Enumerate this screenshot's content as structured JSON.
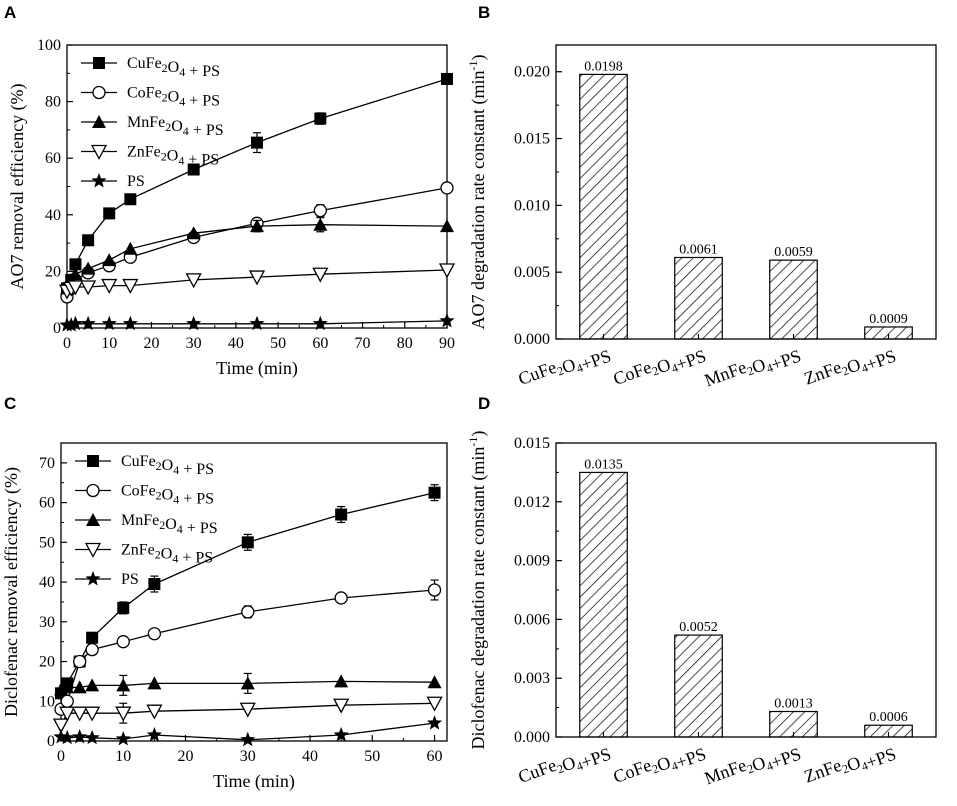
{
  "panels": {
    "A": {
      "letter": "A"
    },
    "B": {
      "letter": "B"
    },
    "C": {
      "letter": "C"
    },
    "D": {
      "letter": "D"
    }
  },
  "chart_data": [
    {
      "id": "A",
      "type": "line",
      "xlabel": "Time (min)",
      "ylabel": "AO7 removal efficiency (%)",
      "xlim": [
        0,
        90
      ],
      "ylim": [
        0,
        100
      ],
      "xticks": [
        0,
        10,
        20,
        30,
        40,
        50,
        60,
        70,
        80,
        90
      ],
      "yticks": [
        0,
        20,
        40,
        60,
        80,
        100
      ],
      "legend_position": "top-left",
      "series": [
        {
          "name": "CuFe2O4 + PS",
          "marker": "filled-square",
          "x": [
            0,
            1,
            2,
            5,
            10,
            15,
            30,
            45,
            60,
            90
          ],
          "y": [
            14,
            17,
            22.5,
            31,
            40.5,
            45.5,
            56,
            65.5,
            74,
            88
          ],
          "err": [
            0,
            0,
            0,
            0,
            0,
            0,
            0,
            3.5,
            2,
            0
          ]
        },
        {
          "name": "CoFe2O4 + PS",
          "marker": "open-circle",
          "x": [
            0,
            1,
            2,
            5,
            10,
            15,
            30,
            45,
            60,
            90
          ],
          "y": [
            11,
            14,
            17,
            19.5,
            22,
            25,
            32,
            37,
            41.5,
            49.5
          ],
          "err": [
            0,
            0,
            0,
            0,
            0,
            0,
            0,
            0,
            2,
            0
          ]
        },
        {
          "name": "MnFe2O4 + PS",
          "marker": "filled-triangle",
          "x": [
            0,
            1,
            2,
            5,
            10,
            15,
            30,
            45,
            60,
            90
          ],
          "y": [
            14,
            17,
            19,
            21,
            24,
            28,
            33.5,
            36,
            36.5,
            36
          ],
          "err": [
            0,
            0,
            0,
            0,
            0,
            0,
            0,
            2,
            2.5,
            0
          ]
        },
        {
          "name": "ZnFe2O4 + PS",
          "marker": "open-triangle-down",
          "x": [
            0,
            1,
            2,
            5,
            10,
            15,
            30,
            45,
            60,
            90
          ],
          "y": [
            13,
            14,
            14.5,
            14.5,
            15,
            15,
            17,
            18,
            19,
            20.5
          ],
          "err": [
            0,
            0,
            0,
            0,
            0,
            0,
            0,
            0,
            0,
            0
          ]
        },
        {
          "name": "PS",
          "marker": "filled-star",
          "x": [
            0,
            1,
            2,
            5,
            10,
            15,
            30,
            45,
            60,
            90
          ],
          "y": [
            1,
            1,
            1.5,
            1.5,
            1.5,
            1.5,
            1.5,
            1.5,
            1.5,
            2.5
          ],
          "err": [
            0,
            0,
            0,
            0,
            0,
            0,
            0,
            0,
            0,
            0
          ]
        }
      ]
    },
    {
      "id": "B",
      "type": "bar",
      "xlabel": "",
      "ylabel": "AO7 degradation rate constant (min-1)",
      "ylabel_main": "AO7 degradation rate constant (min",
      "ylabel_sup": "-1",
      "ylabel_close": ")",
      "ylim": [
        0,
        0.022
      ],
      "yticks": [
        "0.000",
        "0.005",
        "0.010",
        "0.015",
        "0.020"
      ],
      "categories": [
        "CuFe2O4+PS",
        "CoFe2O4+PS",
        "MnFe2O4+PS",
        "ZnFe2O4+PS"
      ],
      "values": [
        0.0198,
        0.0061,
        0.0059,
        0.0009
      ],
      "value_labels": [
        "0.0198",
        "0.0061",
        "0.0059",
        "0.0009"
      ],
      "bar_style": "hatched"
    },
    {
      "id": "C",
      "type": "line",
      "xlabel": "Time (min)",
      "ylabel": "Diclofenac removal efficiency (%)",
      "xlim": [
        0,
        62
      ],
      "ylim": [
        0,
        75
      ],
      "xticks": [
        0,
        10,
        20,
        30,
        40,
        50,
        60
      ],
      "yticks": [
        0,
        10,
        20,
        30,
        40,
        50,
        60,
        70
      ],
      "legend_position": "top-left",
      "series": [
        {
          "name": "CuFe2O4 + PS",
          "marker": "filled-square",
          "x": [
            0,
            1,
            3,
            5,
            10,
            15,
            30,
            45,
            60
          ],
          "y": [
            12,
            14.5,
            20,
            26,
            33.5,
            39.5,
            50,
            57,
            62.5
          ],
          "err": [
            1,
            0,
            0,
            0,
            1.5,
            2,
            2,
            2,
            2
          ]
        },
        {
          "name": "CoFe2O4 + PS",
          "marker": "open-circle",
          "x": [
            0,
            1,
            3,
            5,
            10,
            15,
            30,
            45,
            60
          ],
          "y": [
            8,
            10,
            20,
            23,
            25,
            27,
            32.5,
            36,
            38
          ],
          "err": [
            1,
            0,
            1,
            1,
            0,
            0,
            1.5,
            0,
            2.5
          ]
        },
        {
          "name": "MnFe2O4 + PS",
          "marker": "filled-triangle",
          "x": [
            0,
            1,
            3,
            5,
            10,
            15,
            30,
            45,
            60
          ],
          "y": [
            13,
            13.5,
            13.5,
            14,
            14,
            14.5,
            14.5,
            15,
            14.8
          ],
          "err": [
            0,
            0,
            0,
            0,
            2.5,
            0,
            2.5,
            0,
            0
          ]
        },
        {
          "name": "ZnFe2O4 + PS",
          "marker": "open-triangle-down",
          "x": [
            0,
            1,
            3,
            5,
            10,
            15,
            30,
            45,
            60
          ],
          "y": [
            4,
            7,
            7,
            7,
            7,
            7.5,
            8,
            9,
            9.5
          ],
          "err": [
            0,
            0,
            0,
            0,
            2.5,
            0,
            0,
            0,
            0
          ]
        },
        {
          "name": "PS",
          "marker": "filled-star",
          "x": [
            0,
            1,
            3,
            5,
            10,
            15,
            30,
            45,
            60
          ],
          "y": [
            1,
            0.8,
            1,
            0.8,
            0.5,
            1.5,
            0.3,
            1.5,
            4.5
          ],
          "err": [
            0,
            0,
            0,
            0,
            0,
            0,
            0,
            0,
            0
          ]
        }
      ]
    },
    {
      "id": "D",
      "type": "bar",
      "xlabel": "",
      "ylabel": "Diclofenac degradation rate constant (min-1)",
      "ylabel_main": "Diclofenac degradation rate constant (min",
      "ylabel_sup": "-1",
      "ylabel_close": ")",
      "ylim": [
        0,
        0.015
      ],
      "yticks": [
        "0.000",
        "0.003",
        "0.006",
        "0.009",
        "0.012",
        "0.015"
      ],
      "categories": [
        "CuFe2O4+PS",
        "CoFe2O4+PS",
        "MnFe2O4+PS",
        "ZnFe2O4+PS"
      ],
      "values": [
        0.0135,
        0.0052,
        0.0013,
        0.0006
      ],
      "value_labels": [
        "0.0135",
        "0.0052",
        "0.0013",
        "0.0006"
      ],
      "bar_style": "hatched"
    }
  ]
}
